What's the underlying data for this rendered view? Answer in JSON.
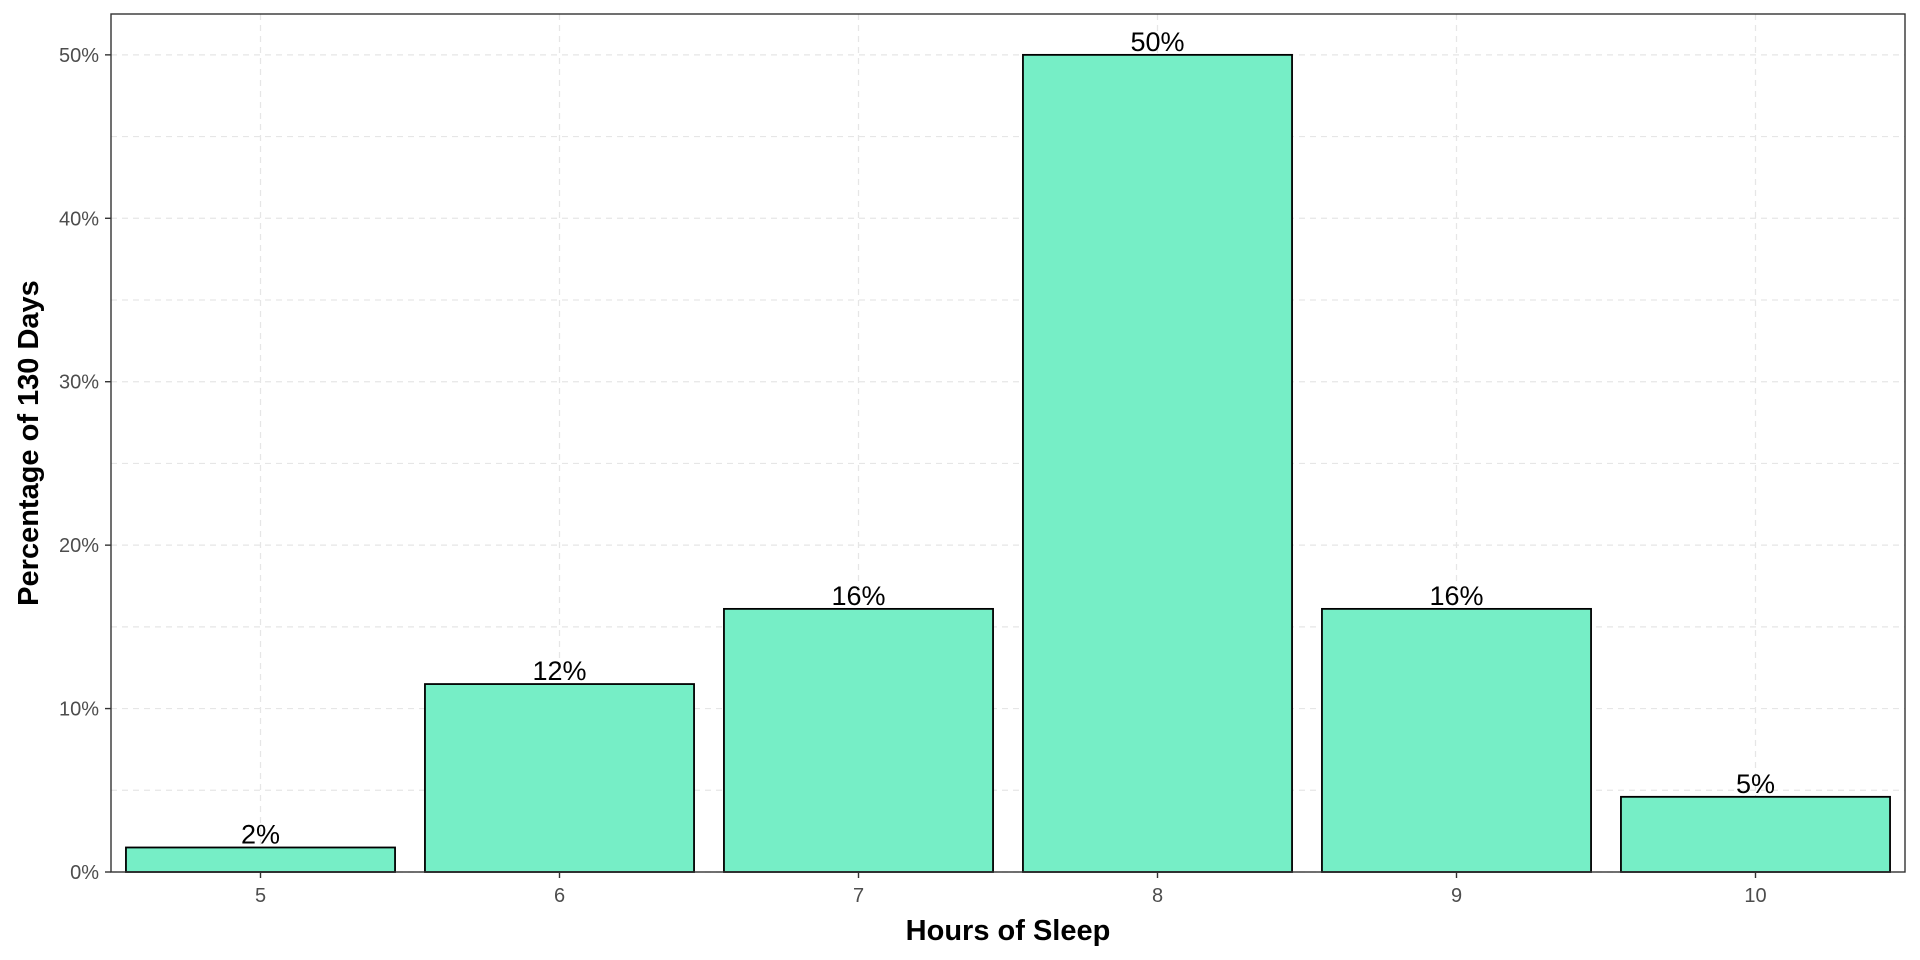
{
  "chart_data": {
    "type": "bar",
    "xlabel": "Hours of Sleep",
    "ylabel": "Percentage of 130 Days",
    "categories": [
      "5",
      "6",
      "7",
      "8",
      "9",
      "10"
    ],
    "values": [
      1.5,
      11.5,
      16.1,
      50.0,
      16.1,
      4.6
    ],
    "data_labels": [
      "2%",
      "12%",
      "16%",
      "50%",
      "16%",
      "5%"
    ],
    "ylim": [
      0,
      52.5
    ],
    "yticks": [
      0,
      10,
      20,
      30,
      40,
      50
    ],
    "ytick_labels": [
      "0%",
      "10%",
      "20%",
      "30%",
      "40%",
      "50%"
    ],
    "grid": true,
    "bar_color": "#76EEC6",
    "bar_border_color": "#000000"
  }
}
